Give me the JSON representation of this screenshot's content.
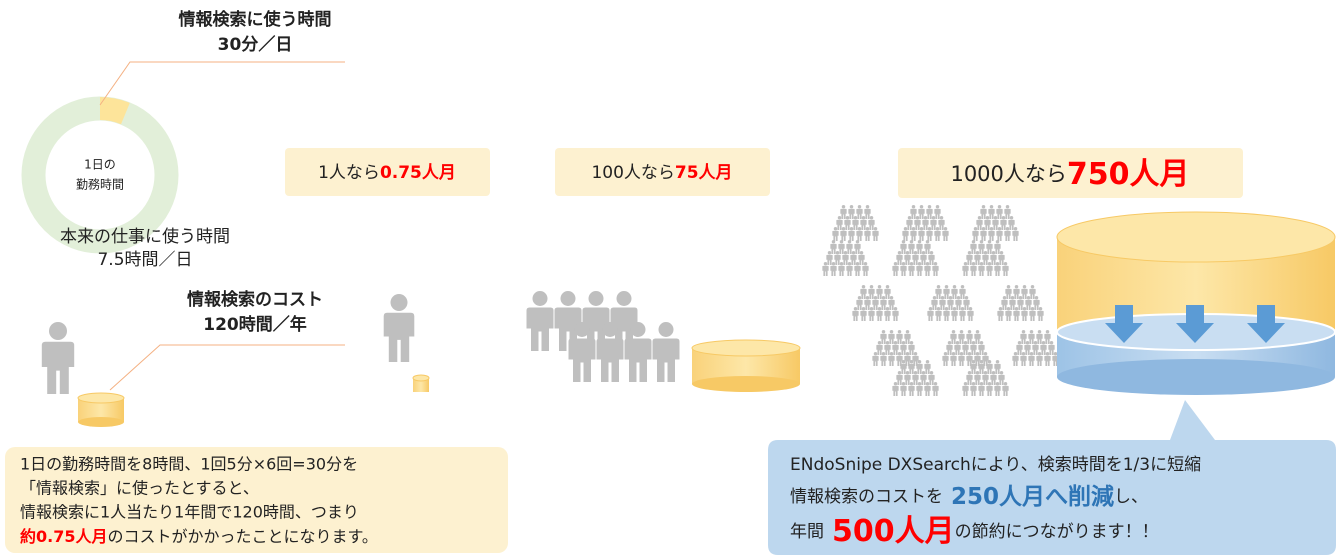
{
  "search_time": {
    "title": "情報検索に使う時間",
    "value": "30分／日"
  },
  "donut_center": [
    "1日の",
    "勤務時間"
  ],
  "work_time": {
    "title": "本来の仕事に使う時間",
    "value": "7.5時間／日"
  },
  "cost": {
    "title": "情報検索のコスト",
    "value": "120時間／年"
  },
  "boxes": [
    {
      "prefix": "1人なら",
      "amount": "0.75人月"
    },
    {
      "prefix": "100人なら",
      "amount": "75人月"
    },
    {
      "prefix": "1000人なら",
      "amount": "750人月"
    }
  ],
  "note": {
    "lines": [
      "1日の勤務時間を8時間、1回5分×6回=30分を",
      "「情報検索」に使ったとすると、",
      "情報検索に1人当たり1年間で120時間、つまり"
    ],
    "highlight": "約0.75人月",
    "tail": "のコストがかかったことになります。"
  },
  "result": {
    "line1": "ENdoSnipe DXSearchにより、検索時間を1/3に短縮",
    "line2_pre": "情報検索のコストを",
    "line2_em": "250人月へ削減",
    "line2_post": "し、",
    "line3_pre": "年間",
    "line3_em": "500人月",
    "line3_post": "の節約につながります！！"
  }
}
